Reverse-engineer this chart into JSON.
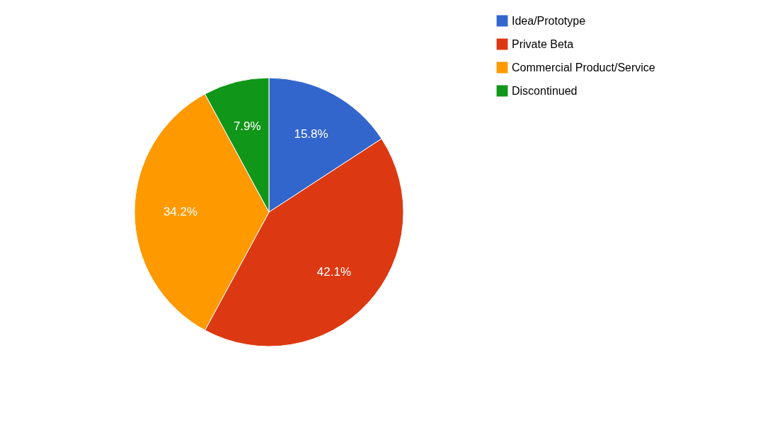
{
  "chart_data": {
    "type": "pie",
    "categories": [
      "Idea/Prototype",
      "Private Beta",
      "Commercial Product/Service",
      "Discontinued"
    ],
    "values": [
      15.8,
      42.1,
      34.2,
      7.9
    ],
    "colors": [
      "#3366cc",
      "#dc3912",
      "#ff9900",
      "#109618"
    ],
    "value_labels": [
      "15.8%",
      "42.1%",
      "34.2%",
      "7.9%"
    ],
    "legend": "right"
  }
}
